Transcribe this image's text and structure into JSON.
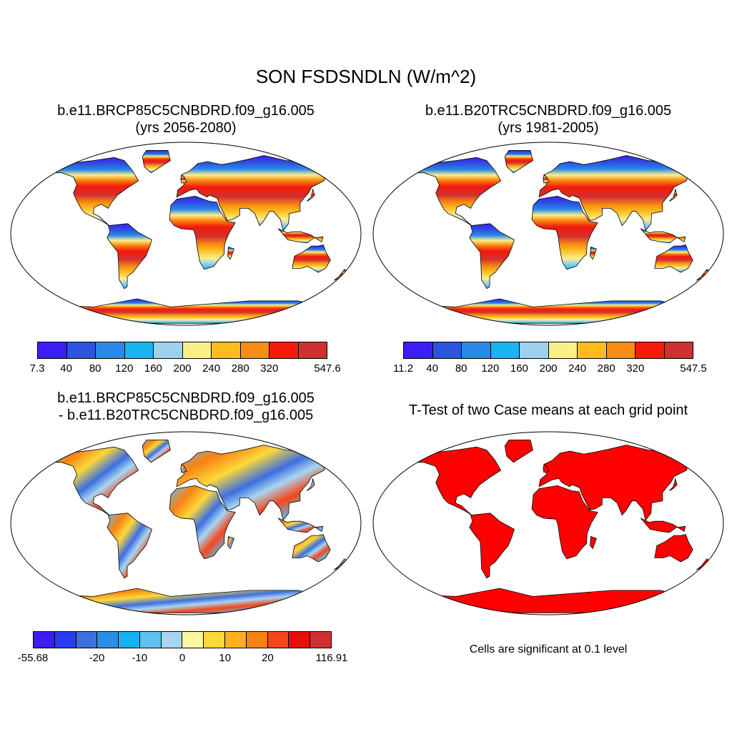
{
  "title": "SON FSDSNDLN (W/m^2)",
  "panels": [
    {
      "title_line1": "b.e11.BRCP85C5CNBDRD.f09_g16.005",
      "title_line2": "(yrs 2056-2080)",
      "colorbar": {
        "colors": [
          "#3a1ef5",
          "#2c54e0",
          "#2a88e8",
          "#17b6f0",
          "#9fd1ef",
          "#fbef8c",
          "#fbbc1e",
          "#f98c12",
          "#f61a0c",
          "#d13030"
        ],
        "labels": [
          "7.3",
          "40",
          "80",
          "120",
          "160",
          "200",
          "240",
          "280",
          "320",
          "547.6"
        ]
      }
    },
    {
      "title_line1": "b.e11.B20TRC5CNBDRD.f09_g16.005",
      "title_line2": "(yrs 1981-2005)",
      "colorbar": {
        "colors": [
          "#3a1ef5",
          "#2c54e0",
          "#2a88e8",
          "#17b6f0",
          "#9fd1ef",
          "#fbef8c",
          "#fbbc1e",
          "#f98c12",
          "#f61a0c",
          "#d13030"
        ],
        "labels": [
          "11.2",
          "40",
          "80",
          "120",
          "160",
          "200",
          "240",
          "280",
          "320",
          "547.5"
        ]
      }
    },
    {
      "title_line1": "b.e11.BRCP85C5CNBDRD.f09_g16.005",
      "title_line2": "- b.e11.B20TRC5CNBDRD.f09_g16.005",
      "colorbar": {
        "colors": [
          "#3a1ef5",
          "#2a3cf0",
          "#3d6fe0",
          "#2a8ee8",
          "#18b0ee",
          "#5ec1ee",
          "#a8d6f0",
          "#fdf5a0",
          "#fcd838",
          "#fbb21c",
          "#f98214",
          "#f5451a",
          "#e5100c",
          "#d13030"
        ],
        "labels": [
          "-55.68",
          "",
          "",
          "-20",
          "",
          "-10",
          "",
          "0",
          "",
          "10",
          "",
          "20",
          "",
          "116.91"
        ]
      }
    },
    {
      "title_line1": "T-Test of two Case means at each grid point",
      "note": "Cells are significant at 0.1 level",
      "fill_color": "#ff0000"
    }
  ]
}
